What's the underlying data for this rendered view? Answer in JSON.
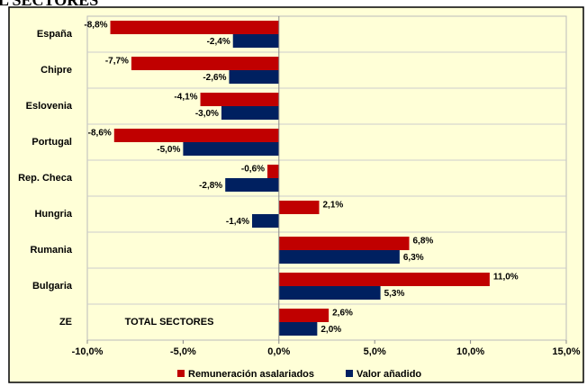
{
  "chart_data": {
    "type": "hbar",
    "title": "L SECTORES",
    "annotation": "TOTAL SECTORES",
    "categories": [
      "España",
      "Chipre",
      "Eslovenia",
      "Portugal",
      "Rep. Checa",
      "Hungria",
      "Rumania",
      "Bulgaria",
      "ZE"
    ],
    "series": [
      {
        "name": "Remuneración asalariados",
        "color": "#c00000",
        "values": [
          -8.8,
          -7.7,
          -4.1,
          -8.6,
          -0.6,
          2.1,
          6.8,
          11.0,
          2.6
        ],
        "value_labels": [
          "-8,8%",
          "-7,7%",
          "-4,1%",
          "-8,6%",
          "-0,6%",
          "2,1%",
          "6,8%",
          "11,0%",
          "2,6%"
        ]
      },
      {
        "name": "Valor añadido",
        "color": "#002060",
        "values": [
          -2.4,
          -2.6,
          -3.0,
          -5.0,
          -2.8,
          -1.4,
          6.3,
          5.3,
          2.0
        ],
        "value_labels": [
          "-2,4%",
          "-2,6%",
          "-3,0%",
          "-5,0%",
          "-2,8%",
          "-1,4%",
          "6,3%",
          "5,3%",
          "2,0%"
        ]
      }
    ],
    "xlim": [
      -10,
      15
    ],
    "xticks": [
      {
        "value": -10,
        "label": "-10,0%"
      },
      {
        "value": -5,
        "label": "-5,0%"
      },
      {
        "value": 0,
        "label": "0,0%"
      },
      {
        "value": 5,
        "label": "5,0%"
      },
      {
        "value": 10,
        "label": "10,0%"
      },
      {
        "value": 15,
        "label": "15,0%"
      }
    ],
    "legend": "bottom"
  }
}
